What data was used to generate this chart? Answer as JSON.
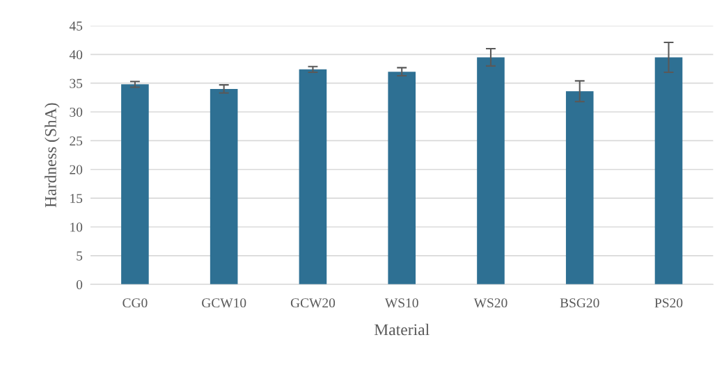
{
  "chart_data": {
    "type": "bar",
    "xlabel": "Material",
    "ylabel": "Hardness (ShA)",
    "categories": [
      "CG0",
      "GCW10",
      "GCW20",
      "WS10",
      "WS20",
      "BSG20",
      "PS20"
    ],
    "values": [
      34.8,
      34.0,
      37.4,
      37.0,
      39.5,
      33.6,
      39.5
    ],
    "errors": [
      0.5,
      0.7,
      0.5,
      0.7,
      1.5,
      1.8,
      2.6
    ],
    "color": "#2e7093",
    "ylim": [
      0,
      45
    ],
    "yticks": [
      0,
      5,
      10,
      15,
      20,
      25,
      30,
      35,
      40,
      45
    ],
    "grid": "y"
  }
}
